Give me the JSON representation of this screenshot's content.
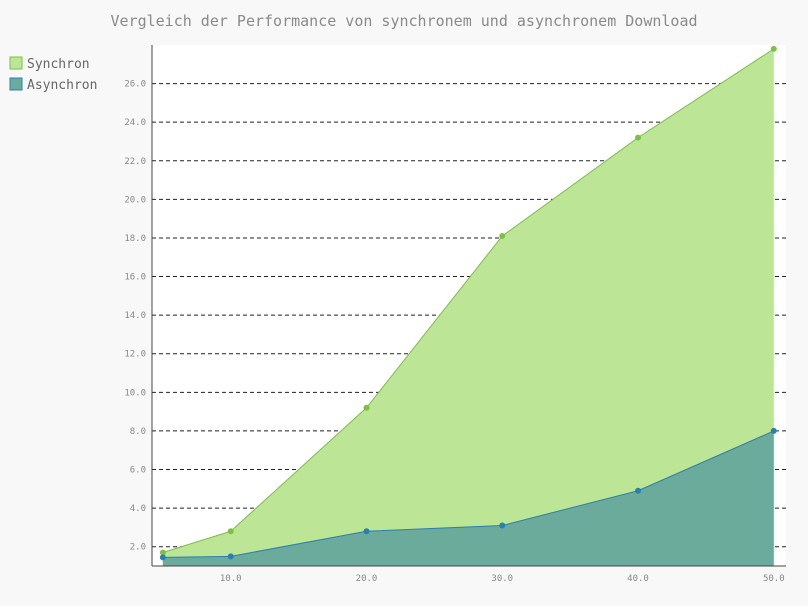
{
  "chart_data": {
    "type": "area",
    "title": "Vergleich der Performance von synchronem und asynchronem Download",
    "xlabel": "",
    "ylabel": "",
    "x": [
      5,
      10,
      20,
      30,
      40,
      50
    ],
    "xticks": [
      "10.0",
      "20.0",
      "30.0",
      "40.0",
      "50.0"
    ],
    "yticks": [
      "2.0",
      "4.0",
      "6.0",
      "8.0",
      "10.0",
      "12.0",
      "14.0",
      "16.0",
      "18.0",
      "20.0",
      "22.0",
      "24.0",
      "26.0"
    ],
    "xlim": [
      4.2,
      50.9
    ],
    "ylim": [
      1.0,
      28.0
    ],
    "grid": true,
    "legend_position": "top-left",
    "series": [
      {
        "name": "Synchron",
        "values": [
          1.7,
          2.8,
          9.2,
          18.1,
          23.2,
          27.8
        ],
        "color": "#7cc142",
        "fill": "#bde596"
      },
      {
        "name": "Asynchron",
        "values": [
          1.45,
          1.5,
          2.8,
          3.1,
          4.9,
          8.0
        ],
        "color": "#2a7fb0",
        "fill": "#6aab9c"
      }
    ]
  }
}
